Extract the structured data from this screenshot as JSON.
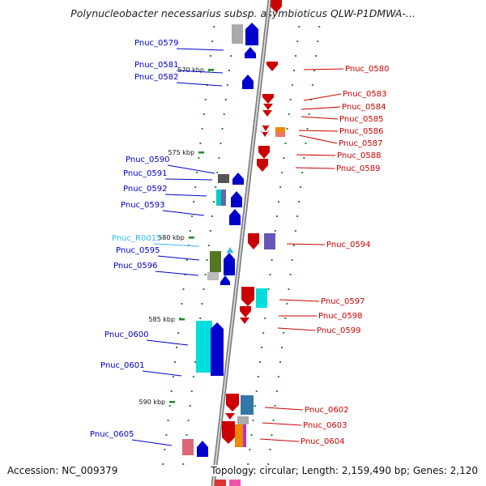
{
  "title": "Polynucleobacter necessarius subsp. asymbioticus QLW-P1DMWA-...",
  "footer": {
    "accession": "Accession: NC_009379",
    "topology": "Topology: circular; Length: 2,159,490 bp; Genes: 2,120"
  },
  "colors": {
    "forward_gene": "#0000cc",
    "reverse_gene": "#cc0000",
    "rna_gene": "#33bbee",
    "ruler_tick": "#228822",
    "backbone": "#999999"
  },
  "kbp_markers": [
    "570 kbp",
    "575 kbp",
    "580 kbp",
    "585 kbp",
    "590 kbp"
  ],
  "left_labels": [
    {
      "name": "Pnuc_0579",
      "strand": "forward"
    },
    {
      "name": "Pnuc_0581",
      "strand": "forward"
    },
    {
      "name": "Pnuc_0582",
      "strand": "forward"
    },
    {
      "name": "Pnuc_0590",
      "strand": "forward"
    },
    {
      "name": "Pnuc_0591",
      "strand": "forward"
    },
    {
      "name": "Pnuc_0592",
      "strand": "forward"
    },
    {
      "name": "Pnuc_0593",
      "strand": "forward"
    },
    {
      "name": "Pnuc_R0015",
      "strand": "rna"
    },
    {
      "name": "Pnuc_0595",
      "strand": "forward"
    },
    {
      "name": "Pnuc_0596",
      "strand": "forward"
    },
    {
      "name": "Pnuc_0600",
      "strand": "forward"
    },
    {
      "name": "Pnuc_0601",
      "strand": "forward"
    },
    {
      "name": "Pnuc_0605",
      "strand": "forward"
    }
  ],
  "right_labels": [
    {
      "name": "Pnuc_0580",
      "strand": "reverse"
    },
    {
      "name": "Pnuc_0583",
      "strand": "reverse"
    },
    {
      "name": "Pnuc_0584",
      "strand": "reverse"
    },
    {
      "name": "Pnuc_0585",
      "strand": "reverse"
    },
    {
      "name": "Pnuc_0586",
      "strand": "reverse"
    },
    {
      "name": "Pnuc_0587",
      "strand": "reverse"
    },
    {
      "name": "Pnuc_0588",
      "strand": "reverse"
    },
    {
      "name": "Pnuc_0589",
      "strand": "reverse"
    },
    {
      "name": "Pnuc_0594",
      "strand": "reverse"
    },
    {
      "name": "Pnuc_0597",
      "strand": "reverse"
    },
    {
      "name": "Pnuc_0598",
      "strand": "reverse"
    },
    {
      "name": "Pnuc_0599",
      "strand": "reverse"
    },
    {
      "name": "Pnuc_0602",
      "strand": "reverse"
    },
    {
      "name": "Pnuc_0603",
      "strand": "reverse"
    },
    {
      "name": "Pnuc_0604",
      "strand": "reverse"
    }
  ]
}
